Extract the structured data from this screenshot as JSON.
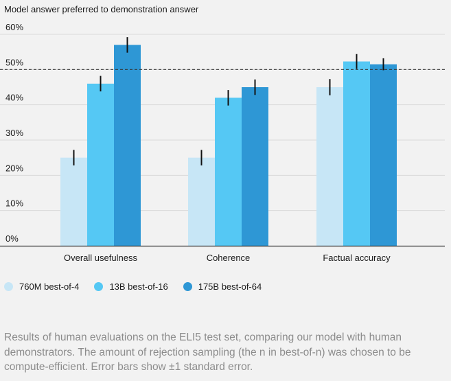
{
  "chart_data": {
    "type": "bar",
    "ylabel": "Model answer preferred to demonstration answer",
    "categories": [
      "Overall usefulness",
      "Coherence",
      "Factual accuracy"
    ],
    "yticks": [
      "0%",
      "10%",
      "20%",
      "30%",
      "40%",
      "50%",
      "60%"
    ],
    "ylim": [
      0,
      60
    ],
    "reference_line": 50,
    "grid": true,
    "legend_position": "bottom-left",
    "series": [
      {
        "name": "760M best-of-4",
        "color": "#c7e6f6",
        "values": [
          25,
          25,
          45
        ],
        "errors": [
          2.2,
          2.2,
          2.3
        ]
      },
      {
        "name": "13B best-of-16",
        "color": "#55c8f4",
        "values": [
          46,
          42,
          52.3
        ],
        "errors": [
          2.2,
          2.2,
          2.1
        ]
      },
      {
        "name": "175B best-of-64",
        "color": "#2e97d5",
        "values": [
          57,
          45,
          51.5
        ],
        "errors": [
          2.2,
          2.2,
          1.7
        ]
      }
    ]
  },
  "caption": "Results of human evaluations on the ELI5 test set, comparing our model with human demonstrators. The amount of rejection sampling (the n in best-of-n) was chosen to be compute-efficient. Error bars show ±1 standard error."
}
